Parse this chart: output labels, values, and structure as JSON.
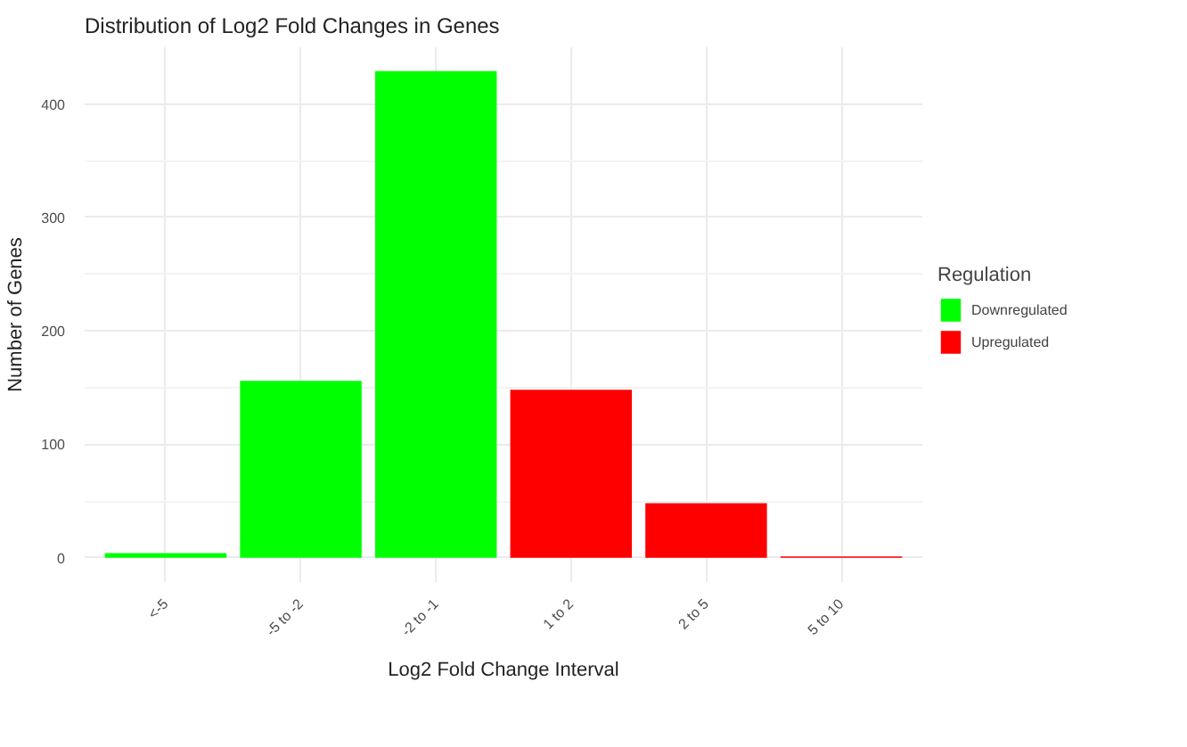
{
  "chart_data": {
    "type": "bar",
    "title": "Distribution of Log2 Fold Changes in Genes",
    "xlabel": "Log2 Fold Change Interval",
    "ylabel": "Number of Genes",
    "legend_title": "Regulation",
    "categories": [
      "<-5",
      "-5 to -2",
      "-2 to -1",
      "1 to 2",
      "2 to 5",
      "5 to 10"
    ],
    "series": [
      {
        "name": "Downregulated",
        "color": "#00ff00",
        "values": [
          4,
          156,
          429,
          null,
          null,
          null
        ]
      },
      {
        "name": "Upregulated",
        "color": "#ff0000",
        "values": [
          null,
          null,
          null,
          148,
          48,
          1
        ]
      }
    ],
    "ylim": [
      -21.5,
      450
    ],
    "yticks": [
      0,
      100,
      200,
      300,
      400
    ],
    "grid": true,
    "legend": "right"
  }
}
